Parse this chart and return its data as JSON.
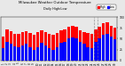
{
  "title": "Milwaukee Weather Outdoor Temperature",
  "subtitle": "Daily High/Low",
  "high_color": "#ff0000",
  "low_color": "#0000ff",
  "background_color": "#e8e8e8",
  "highs": [
    55,
    72,
    68,
    60,
    60,
    65,
    68,
    62,
    58,
    65,
    70,
    65,
    60,
    58,
    62,
    70,
    72,
    78,
    80,
    78,
    70,
    65,
    62,
    60,
    72,
    78,
    85,
    88,
    80,
    75
  ],
  "lows": [
    28,
    42,
    38,
    32,
    30,
    35,
    38,
    30,
    25,
    30,
    40,
    35,
    28,
    25,
    30,
    40,
    42,
    50,
    52,
    50,
    42,
    38,
    30,
    28,
    42,
    50,
    58,
    60,
    55,
    48
  ],
  "xlabels": [
    "1",
    "2",
    "3",
    "4",
    "5",
    "6",
    "7",
    "8",
    "9",
    "10",
    "11",
    "12",
    "13",
    "14",
    "15",
    "16",
    "17",
    "18",
    "19",
    "20",
    "21",
    "22",
    "23",
    "24",
    "25",
    "26",
    "27",
    "28",
    "29",
    "30"
  ],
  "ylim": [
    0,
    100
  ],
  "yticks": [
    0,
    25,
    50,
    75,
    100
  ],
  "ytick_labels": [
    "0",
    "25",
    "50",
    "75",
    "100"
  ],
  "dashed_vline_positions": [
    23.5,
    24.5
  ],
  "legend_labels": [
    "High",
    "Low"
  ],
  "bar_width": 0.8
}
